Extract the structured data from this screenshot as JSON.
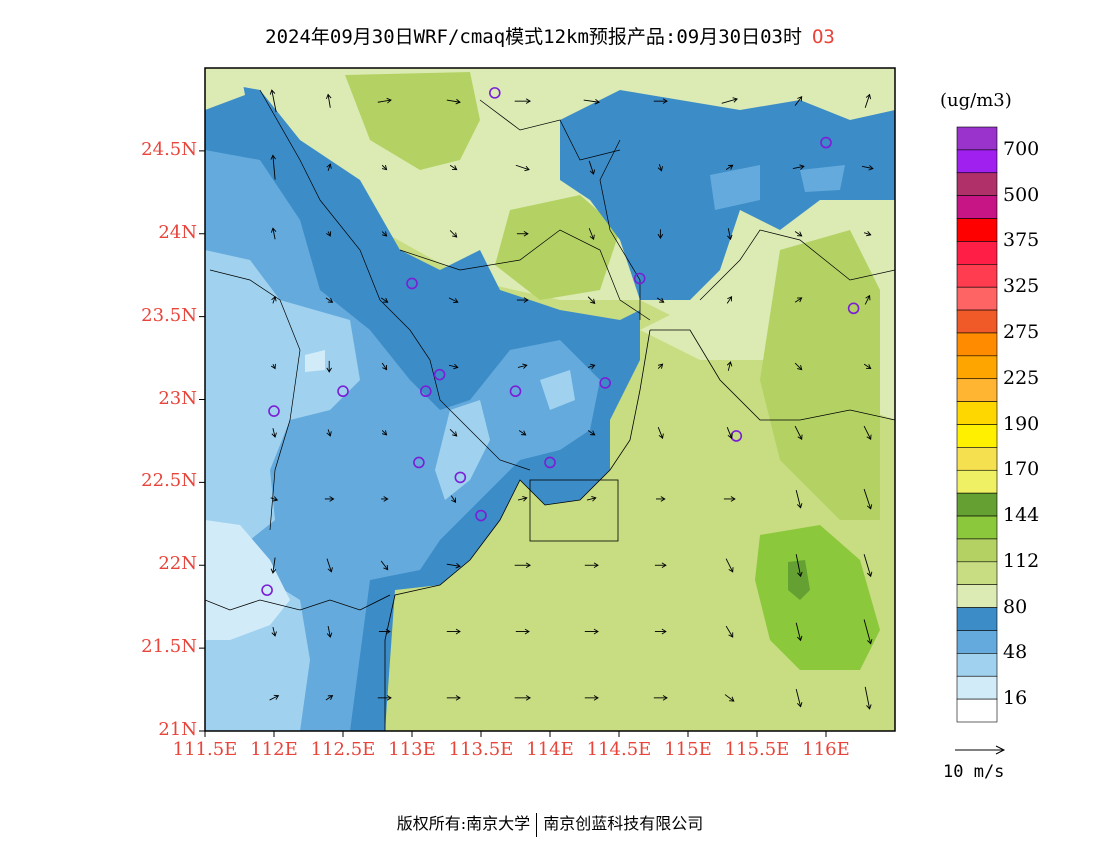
{
  "header": {
    "title": "2024年09月30日WRF/cmaq模式12km预报产品:09月30日03时",
    "pollutant": "O3"
  },
  "axes": {
    "lat_labels": [
      "24.5N",
      "24N",
      "23.5N",
      "23N",
      "22.5N",
      "22N",
      "21.5N",
      "21N"
    ],
    "lat_values": [
      24.5,
      24,
      23.5,
      23,
      22.5,
      22,
      21.5,
      21
    ],
    "lon_labels": [
      "111.5E",
      "112E",
      "112.5E",
      "113E",
      "113.5E",
      "114E",
      "114.5E",
      "115E",
      "115.5E",
      "116E"
    ],
    "lon_values": [
      111.5,
      112,
      112.5,
      113,
      113.5,
      114,
      114.5,
      115,
      115.5,
      116
    ],
    "lon_range": [
      111.5,
      116.5
    ],
    "lat_range": [
      21,
      25
    ]
  },
  "colorbar": {
    "unit": "(ug/m3)",
    "labels": [
      "700",
      "500",
      "375",
      "325",
      "275",
      "225",
      "190",
      "170",
      "144",
      "112",
      "80",
      "48",
      "16"
    ],
    "colors_top_to_bottom": [
      "#9933cc",
      "#a020f0",
      "#b0306a",
      "#c71585",
      "#ff0000",
      "#ff1e46",
      "#ff3c50",
      "#ff6464",
      "#f05a28",
      "#ff8c00",
      "#ffa500",
      "#ffb432",
      "#ffd700",
      "#fff000",
      "#f5e050",
      "#f0f064",
      "#64a032",
      "#8cc83c",
      "#b4d264",
      "#c8dc82",
      "#dcebb4",
      "#3c8cc8",
      "#64aadc",
      "#a0d2f0",
      "#d2ebf8",
      "#ffffff"
    ]
  },
  "map": {
    "colors": {
      "ocean_green": "#c8dc82",
      "green_light": "#dcebb4",
      "green_mid": "#b4d264",
      "green_dark": "#8cc83c",
      "green_darkest": "#64a032",
      "blue_dark": "#3c8cc8",
      "blue_mid": "#64aadc",
      "blue_light": "#a0d2f0",
      "blue_pale": "#d2ebf8"
    },
    "stations": [
      [
        113.6,
        24.85
      ],
      [
        116.0,
        24.55
      ],
      [
        113.0,
        23.7
      ],
      [
        114.65,
        23.73
      ],
      [
        116.2,
        23.55
      ],
      [
        113.2,
        23.15
      ],
      [
        112.5,
        23.05
      ],
      [
        113.1,
        23.05
      ],
      [
        113.75,
        23.05
      ],
      [
        114.4,
        23.1
      ],
      [
        112.0,
        22.93
      ],
      [
        115.35,
        22.78
      ],
      [
        113.05,
        22.62
      ],
      [
        113.35,
        22.53
      ],
      [
        114.0,
        22.62
      ],
      [
        113.5,
        22.3
      ],
      [
        111.95,
        21.85
      ]
    ],
    "wind_vectors": [
      [
        112.0,
        24.8,
        -0.2,
        1.0
      ],
      [
        112.4,
        24.8,
        -0.1,
        0.6
      ],
      [
        112.8,
        24.8,
        0.6,
        0.1
      ],
      [
        113.3,
        24.8,
        0.6,
        -0.1
      ],
      [
        113.8,
        24.8,
        0.7,
        0.0
      ],
      [
        114.3,
        24.8,
        0.7,
        -0.1
      ],
      [
        114.8,
        24.8,
        0.6,
        0.0
      ],
      [
        115.3,
        24.8,
        0.7,
        0.2
      ],
      [
        115.8,
        24.8,
        0.3,
        0.4
      ],
      [
        116.3,
        24.8,
        0.2,
        0.6
      ],
      [
        112.0,
        24.4,
        -0.1,
        1.1
      ],
      [
        112.4,
        24.4,
        0.1,
        0.3
      ],
      [
        112.8,
        24.4,
        0.2,
        -0.2
      ],
      [
        113.3,
        24.4,
        0.3,
        -0.2
      ],
      [
        113.8,
        24.4,
        0.6,
        -0.2
      ],
      [
        114.3,
        24.4,
        0.2,
        -0.6
      ],
      [
        114.8,
        24.4,
        0.1,
        -0.3
      ],
      [
        115.3,
        24.4,
        0.3,
        0.2
      ],
      [
        115.8,
        24.4,
        0.5,
        0.1
      ],
      [
        116.3,
        24.4,
        0.5,
        -0.1
      ],
      [
        112.0,
        24.0,
        -0.1,
        0.5
      ],
      [
        112.4,
        24.0,
        0.1,
        -0.2
      ],
      [
        112.8,
        24.0,
        0.2,
        -0.2
      ],
      [
        113.3,
        24.0,
        0.3,
        -0.3
      ],
      [
        113.8,
        24.0,
        0.5,
        0.0
      ],
      [
        114.3,
        24.0,
        0.2,
        -0.5
      ],
      [
        114.8,
        24.0,
        0.0,
        -0.4
      ],
      [
        115.3,
        24.0,
        0.1,
        -0.5
      ],
      [
        115.8,
        24.0,
        0.3,
        -0.2
      ],
      [
        116.3,
        24.0,
        0.3,
        -0.1
      ],
      [
        112.0,
        23.6,
        0.1,
        0.3
      ],
      [
        112.4,
        23.6,
        0.3,
        -0.2
      ],
      [
        112.8,
        23.6,
        0.3,
        -0.2
      ],
      [
        113.3,
        23.6,
        0.4,
        -0.2
      ],
      [
        113.8,
        23.6,
        0.5,
        0.0
      ],
      [
        114.3,
        23.6,
        0.3,
        -0.3
      ],
      [
        114.8,
        23.6,
        0.3,
        -0.2
      ],
      [
        115.3,
        23.6,
        0.2,
        0.3
      ],
      [
        115.8,
        23.6,
        0.3,
        0.2
      ],
      [
        116.3,
        23.6,
        0.2,
        0.4
      ],
      [
        112.0,
        23.2,
        0.1,
        -0.2
      ],
      [
        112.4,
        23.2,
        0.0,
        -0.5
      ],
      [
        112.8,
        23.2,
        0.2,
        -0.3
      ],
      [
        113.3,
        23.2,
        0.4,
        -0.1
      ],
      [
        113.8,
        23.2,
        0.4,
        0.1
      ],
      [
        114.3,
        23.2,
        0.3,
        0.1
      ],
      [
        114.8,
        23.2,
        0.2,
        0.2
      ],
      [
        115.3,
        23.2,
        0.1,
        0.4
      ],
      [
        115.8,
        23.2,
        0.3,
        -0.3
      ],
      [
        116.3,
        23.2,
        0.3,
        -0.2
      ],
      [
        112.0,
        22.8,
        0.1,
        -0.4
      ],
      [
        112.4,
        22.8,
        0.1,
        -0.3
      ],
      [
        112.8,
        22.8,
        0.2,
        -0.2
      ],
      [
        113.3,
        22.8,
        0.3,
        -0.3
      ],
      [
        113.8,
        22.8,
        0.3,
        -0.2
      ],
      [
        114.3,
        22.8,
        0.3,
        -0.2
      ],
      [
        114.8,
        22.8,
        0.2,
        -0.5
      ],
      [
        115.3,
        22.8,
        0.2,
        -0.5
      ],
      [
        115.8,
        22.8,
        0.3,
        -0.6
      ],
      [
        116.3,
        22.8,
        0.3,
        -0.6
      ],
      [
        112.0,
        22.4,
        0.3,
        -0.1
      ],
      [
        112.4,
        22.4,
        0.4,
        0.0
      ],
      [
        112.8,
        22.4,
        0.3,
        0.0
      ],
      [
        113.3,
        22.4,
        0.2,
        -0.3
      ],
      [
        113.8,
        22.4,
        0.4,
        0.1
      ],
      [
        114.3,
        22.4,
        0.4,
        0.1
      ],
      [
        114.8,
        22.4,
        0.4,
        0.0
      ],
      [
        115.3,
        22.4,
        0.5,
        0.0
      ],
      [
        115.8,
        22.4,
        0.2,
        -0.8
      ],
      [
        116.3,
        22.4,
        0.3,
        -0.9
      ],
      [
        112.0,
        22.0,
        -0.1,
        -0.7
      ],
      [
        112.4,
        22.0,
        0.2,
        -0.6
      ],
      [
        112.8,
        22.0,
        0.3,
        -0.4
      ],
      [
        113.3,
        22.0,
        0.6,
        -0.1
      ],
      [
        113.8,
        22.0,
        0.7,
        0.0
      ],
      [
        114.3,
        22.0,
        0.6,
        0.0
      ],
      [
        114.8,
        22.0,
        0.5,
        0.0
      ],
      [
        115.3,
        22.0,
        0.3,
        -0.6
      ],
      [
        115.8,
        22.0,
        0.2,
        -1.0
      ],
      [
        116.3,
        22.0,
        0.3,
        -1.0
      ],
      [
        112.0,
        21.6,
        0.1,
        -0.4
      ],
      [
        112.4,
        21.6,
        0.1,
        -0.5
      ],
      [
        112.8,
        21.6,
        0.5,
        0.0
      ],
      [
        113.3,
        21.6,
        0.6,
        0.0
      ],
      [
        113.8,
        21.6,
        0.6,
        0.0
      ],
      [
        114.3,
        21.6,
        0.6,
        0.0
      ],
      [
        114.8,
        21.6,
        0.5,
        0.0
      ],
      [
        115.3,
        21.6,
        0.3,
        -0.5
      ],
      [
        115.8,
        21.6,
        0.2,
        -0.8
      ],
      [
        116.3,
        21.6,
        0.3,
        -1.1
      ],
      [
        112.0,
        21.2,
        0.4,
        0.2
      ],
      [
        112.4,
        21.2,
        0.3,
        0.2
      ],
      [
        112.8,
        21.2,
        0.6,
        0.0
      ],
      [
        113.3,
        21.2,
        0.6,
        0.0
      ],
      [
        113.8,
        21.2,
        0.7,
        0.0
      ],
      [
        114.3,
        21.2,
        0.6,
        0.0
      ],
      [
        114.8,
        21.2,
        0.6,
        0.0
      ],
      [
        115.3,
        21.2,
        0.4,
        -0.3
      ],
      [
        115.8,
        21.2,
        0.2,
        -0.8
      ],
      [
        116.3,
        21.2,
        0.2,
        -1.0
      ]
    ]
  },
  "reference_vector": {
    "label": "10 m/s"
  },
  "footer": {
    "left": "版权所有:南京大学",
    "right": "南京创蓝科技有限公司"
  }
}
